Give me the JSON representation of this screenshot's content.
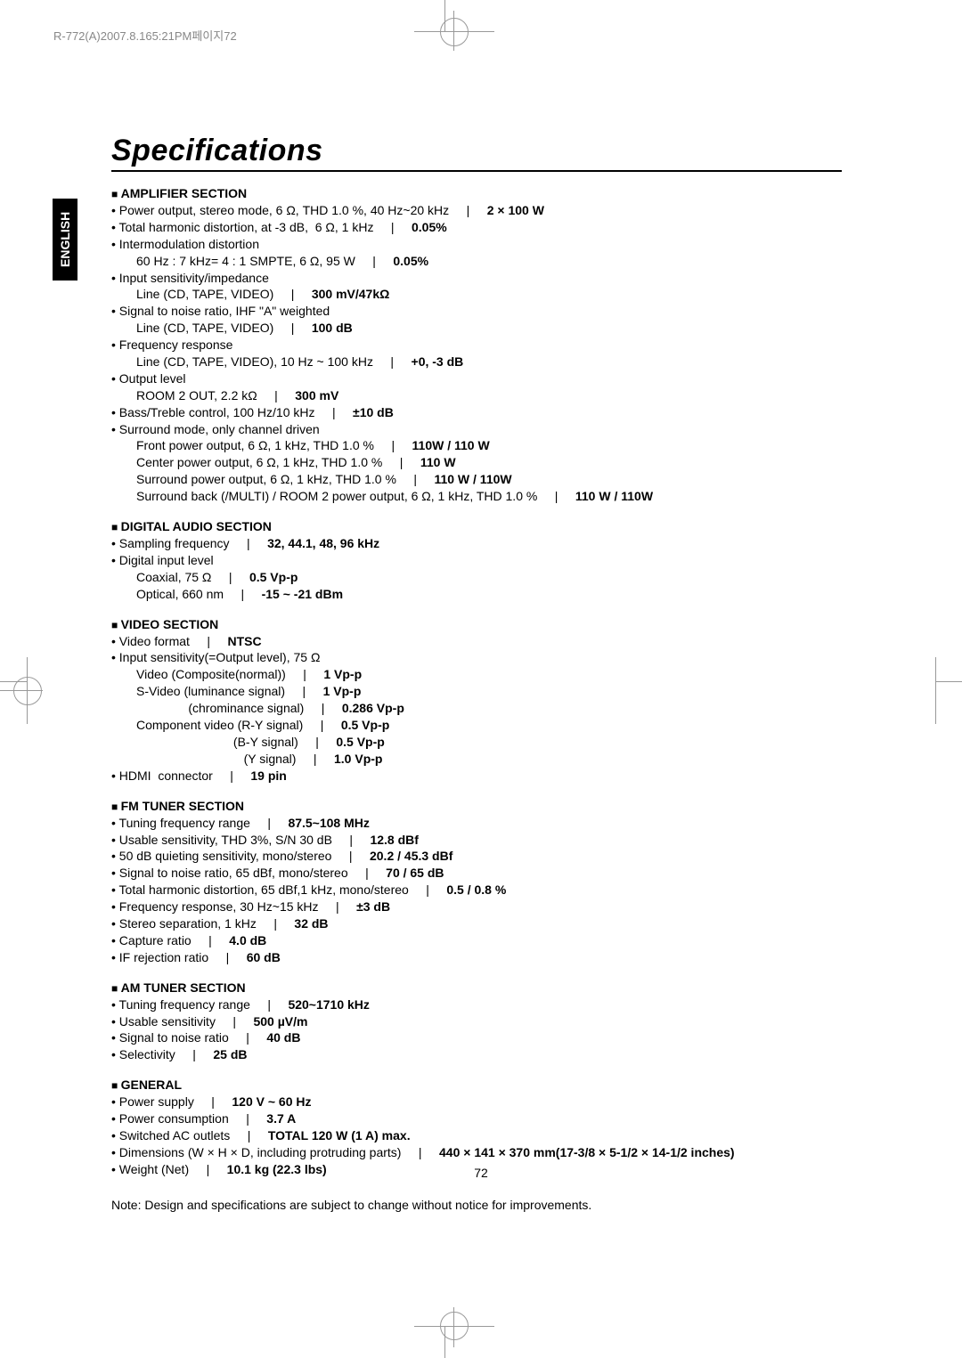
{
  "header": "R-772(A)2007.8.165:21PM페이지72",
  "language_tab": "ENGLISH",
  "title": "Specifications",
  "page_number": "72",
  "note": "Note: Design and specifications are subject to change without notice for improvements.",
  "sections": [
    {
      "heading": "AMPLIFIER SECTION",
      "lines": [
        {
          "lvl": 0,
          "bullet": true,
          "parts": [
            "Power output, stereo mode, 6 Ω, THD 1.0 %, 40 Hz~20 kHz",
            "2 × 100 W"
          ]
        },
        {
          "lvl": 0,
          "bullet": true,
          "parts": [
            "Total harmonic distortion, at -3 dB,  6 Ω, 1 kHz",
            "0.05%"
          ]
        },
        {
          "lvl": 0,
          "bullet": true,
          "parts": [
            "Intermodulation distortion"
          ]
        },
        {
          "lvl": 1,
          "bullet": false,
          "parts": [
            "60 Hz : 7 kHz= 4 : 1 SMPTE, 6 Ω, 95 W",
            "0.05%"
          ]
        },
        {
          "lvl": 0,
          "bullet": true,
          "parts": [
            "Input sensitivity/impedance"
          ]
        },
        {
          "lvl": 1,
          "bullet": false,
          "parts": [
            "Line (CD, TAPE, VIDEO)",
            "300 mV/47kΩ"
          ]
        },
        {
          "lvl": 0,
          "bullet": true,
          "parts": [
            "Signal to noise ratio, IHF \"A\" weighted"
          ]
        },
        {
          "lvl": 1,
          "bullet": false,
          "parts": [
            "Line (CD, TAPE, VIDEO)",
            "100 dB"
          ]
        },
        {
          "lvl": 0,
          "bullet": true,
          "parts": [
            "Frequency response"
          ]
        },
        {
          "lvl": 1,
          "bullet": false,
          "parts": [
            "Line (CD, TAPE, VIDEO), 10 Hz ~ 100 kHz",
            "+0, -3 dB"
          ]
        },
        {
          "lvl": 0,
          "bullet": true,
          "parts": [
            "Output level"
          ]
        },
        {
          "lvl": 1,
          "bullet": false,
          "parts": [
            "ROOM 2 OUT, 2.2 kΩ",
            "300 mV"
          ]
        },
        {
          "lvl": 0,
          "bullet": true,
          "parts": [
            "Bass/Treble control, 100 Hz/10 kHz",
            "±10 dB"
          ]
        },
        {
          "lvl": 0,
          "bullet": true,
          "parts": [
            "Surround mode, only channel driven"
          ]
        },
        {
          "lvl": 1,
          "bullet": false,
          "parts": [
            "Front power output, 6 Ω, 1 kHz, THD 1.0 %",
            "110W / 110 W"
          ]
        },
        {
          "lvl": 1,
          "bullet": false,
          "parts": [
            "Center power output, 6 Ω, 1 kHz, THD 1.0 %",
            "110 W"
          ]
        },
        {
          "lvl": 1,
          "bullet": false,
          "parts": [
            "Surround power output, 6 Ω, 1 kHz, THD 1.0 %",
            "110 W / 110W"
          ]
        },
        {
          "lvl": 1,
          "bullet": false,
          "parts": [
            "Surround back (/MULTI) / ROOM 2 power output, 6 Ω, 1 kHz, THD 1.0 %",
            "110 W / 110W"
          ]
        }
      ]
    },
    {
      "heading": "DIGITAL AUDIO SECTION",
      "lines": [
        {
          "lvl": 0,
          "bullet": true,
          "parts": [
            "Sampling frequency",
            "32, 44.1, 48, 96 kHz"
          ]
        },
        {
          "lvl": 0,
          "bullet": true,
          "parts": [
            "Digital input level"
          ]
        },
        {
          "lvl": 1,
          "bullet": false,
          "parts": [
            "Coaxial, 75 Ω",
            "0.5 Vp-p"
          ]
        },
        {
          "lvl": 1,
          "bullet": false,
          "parts": [
            "Optical, 660 nm",
            "-15 ~ -21 dBm"
          ]
        }
      ]
    },
    {
      "heading": "VIDEO SECTION",
      "lines": [
        {
          "lvl": 0,
          "bullet": true,
          "parts": [
            "Video format",
            "NTSC"
          ]
        },
        {
          "lvl": 0,
          "bullet": true,
          "parts": [
            "Input sensitivity(=Output level), 75 Ω"
          ]
        },
        {
          "lvl": 1,
          "bullet": false,
          "parts": [
            "Video (Composite(normal))",
            "1 Vp-p"
          ]
        },
        {
          "lvl": 1,
          "bullet": false,
          "parts": [
            "S-Video (luminance signal)",
            "1 Vp-p"
          ]
        },
        {
          "lvl": 1,
          "bullet": false,
          "parts": [
            "               (chrominance signal)",
            "0.286 Vp-p"
          ]
        },
        {
          "lvl": 1,
          "bullet": false,
          "parts": [
            "Component video (R-Y signal)",
            "0.5 Vp-p"
          ]
        },
        {
          "lvl": 1,
          "bullet": false,
          "parts": [
            "                            (B-Y signal)",
            "0.5 Vp-p"
          ]
        },
        {
          "lvl": 1,
          "bullet": false,
          "parts": [
            "                               (Y signal)",
            "1.0 Vp-p"
          ]
        },
        {
          "lvl": 0,
          "bullet": true,
          "parts": [
            "HDMI  connector",
            "19 pin"
          ]
        }
      ]
    },
    {
      "heading": "FM TUNER SECTION",
      "lines": [
        {
          "lvl": 0,
          "bullet": true,
          "parts": [
            "Tuning frequency range",
            "87.5~108 MHz"
          ]
        },
        {
          "lvl": 0,
          "bullet": true,
          "parts": [
            "Usable sensitivity, THD 3%, S/N 30 dB",
            "12.8 dBf"
          ]
        },
        {
          "lvl": 0,
          "bullet": true,
          "parts": [
            "50 dB quieting sensitivity, mono/stereo",
            "20.2 / 45.3 dBf"
          ]
        },
        {
          "lvl": 0,
          "bullet": true,
          "parts": [
            "Signal to noise ratio, 65 dBf, mono/stereo",
            "70 / 65 dB"
          ]
        },
        {
          "lvl": 0,
          "bullet": true,
          "parts": [
            "Total harmonic distortion, 65 dBf,1 kHz, mono/stereo",
            "0.5 / 0.8 %"
          ]
        },
        {
          "lvl": 0,
          "bullet": true,
          "parts": [
            "Frequency response, 30 Hz~15 kHz",
            "±3 dB"
          ]
        },
        {
          "lvl": 0,
          "bullet": true,
          "parts": [
            "Stereo separation, 1 kHz",
            "32 dB"
          ]
        },
        {
          "lvl": 0,
          "bullet": true,
          "parts": [
            "Capture ratio",
            "4.0 dB"
          ]
        },
        {
          "lvl": 0,
          "bullet": true,
          "parts": [
            "IF rejection ratio",
            "60 dB"
          ]
        }
      ]
    },
    {
      "heading": "AM TUNER SECTION",
      "lines": [
        {
          "lvl": 0,
          "bullet": true,
          "parts": [
            "Tuning frequency range",
            "520~1710 kHz"
          ]
        },
        {
          "lvl": 0,
          "bullet": true,
          "parts": [
            "Usable sensitivity",
            "500 µV/m"
          ]
        },
        {
          "lvl": 0,
          "bullet": true,
          "parts": [
            "Signal to noise ratio",
            "40 dB"
          ]
        },
        {
          "lvl": 0,
          "bullet": true,
          "parts": [
            "Selectivity",
            "25 dB"
          ]
        }
      ]
    },
    {
      "heading": "GENERAL",
      "lines": [
        {
          "lvl": 0,
          "bullet": true,
          "parts": [
            "Power supply",
            "120 V ~ 60 Hz"
          ]
        },
        {
          "lvl": 0,
          "bullet": true,
          "parts": [
            "Power consumption",
            "3.7 A"
          ]
        },
        {
          "lvl": 0,
          "bullet": true,
          "parts": [
            "Switched AC outlets",
            "TOTAL 120 W (1 A) max."
          ]
        },
        {
          "lvl": 0,
          "bullet": true,
          "parts": [
            "Dimensions (W × H × D, including protruding parts)",
            "440 × 141 × 370 mm(17-3/8 × 5-1/2 × 14-1/2 inches)"
          ]
        },
        {
          "lvl": 0,
          "bullet": true,
          "parts": [
            "Weight (Net)",
            "10.1 kg (22.3 lbs)"
          ]
        }
      ]
    }
  ]
}
